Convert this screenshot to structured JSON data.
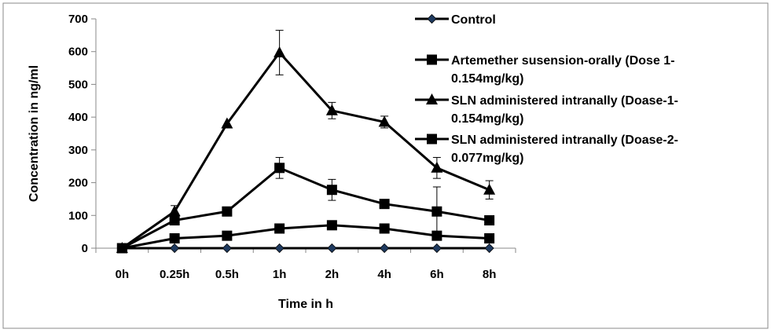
{
  "chart_data": {
    "type": "line",
    "title": "",
    "xlabel": "Time in h",
    "ylabel": "Concentration in ng/ml",
    "ylim": [
      0,
      700
    ],
    "yticks": [
      0,
      100,
      200,
      300,
      400,
      500,
      600,
      700
    ],
    "grid": false,
    "legend_position": "top-right",
    "categories": [
      "0h",
      "0.25h",
      "0.5h",
      "1h",
      "2h",
      "4h",
      "6h",
      "8h"
    ],
    "series": [
      {
        "name": "Control",
        "marker": "diamond",
        "color": "#1f3a5f",
        "values": [
          0,
          0,
          0,
          0,
          0,
          0,
          0,
          0
        ],
        "errors": [
          0,
          0,
          0,
          0,
          0,
          0,
          0,
          0
        ],
        "legend_lines": [
          "Control"
        ]
      },
      {
        "name": "Artemether susension-orally (Dose 1-0.154mg/kg)",
        "marker": "square",
        "color": "#000000",
        "values": [
          0,
          30,
          38,
          60,
          70,
          60,
          38,
          30
        ],
        "errors": [
          0,
          0,
          0,
          0,
          0,
          0,
          0,
          0
        ],
        "legend_lines": [
          "Artemether susension-orally (Dose 1-",
          "0.154mg/kg)"
        ]
      },
      {
        "name": "SLN administered intranally (Doase-1-0.154mg/kg)",
        "marker": "triangle",
        "color": "#000000",
        "values": [
          0,
          112,
          380,
          597,
          420,
          385,
          245,
          178
        ],
        "errors": [
          0,
          18,
          0,
          68,
          25,
          18,
          32,
          28
        ],
        "legend_lines": [
          "SLN administered intranally (Doase-1-",
          "0.154mg/kg)"
        ]
      },
      {
        "name": "SLN administered intranally (Doase-2-0.077mg/kg)",
        "marker": "square",
        "color": "#000000",
        "values": [
          0,
          85,
          112,
          245,
          178,
          135,
          112,
          85
        ],
        "errors": [
          0,
          12,
          0,
          32,
          32,
          0,
          75,
          0
        ],
        "legend_lines": [
          "SLN administered intranally (Doase-2-",
          "0.077mg/kg)"
        ]
      }
    ]
  }
}
